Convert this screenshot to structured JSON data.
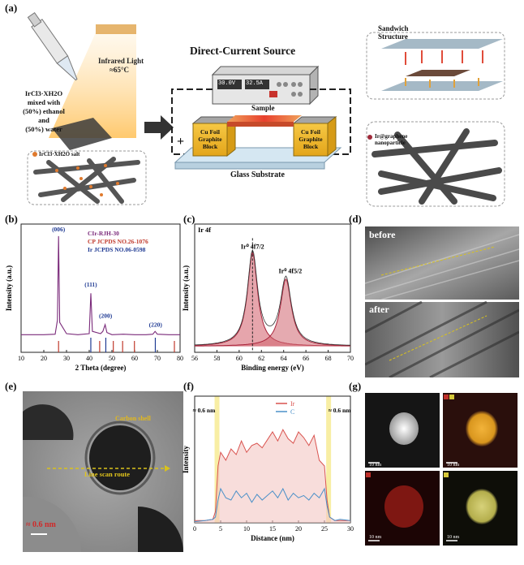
{
  "panel_labels": {
    "a": "(a)",
    "b": "(b)",
    "c": "(c)",
    "d": "(d)",
    "e": "(e)",
    "f": "(f)",
    "g": "(g)"
  },
  "panel_a": {
    "infrared_label": "Infrared Light",
    "infrared_temp": "≈65°C",
    "solution_text": [
      "IrCl3·XH2O",
      "mixed with",
      "(50%) ethanol",
      "and",
      "(50%) water"
    ],
    "salt_legend": "IrCl3·XH2O salt",
    "dc_source_title": "Direct-Current Source",
    "voltage_display": "30.0V",
    "current_display": "32.5A",
    "sample_label": "Sample",
    "block_label": [
      "Cu Foil",
      "Graphite",
      "Block"
    ],
    "plus_sign": "+",
    "substrate_label": "Glass Substrate",
    "sandwich_label": [
      "Sandwich",
      "Structure"
    ],
    "nanoparticle_legend": [
      "Ir@graphene",
      "nanoparticle"
    ]
  },
  "panel_b": {
    "legend": [
      {
        "text": "CIr-RJH-30",
        "color": "#7a2a7a"
      },
      {
        "text": "CP JCPDS NO.26-1076",
        "color": "#c0392b"
      },
      {
        "text": "Ir JCPDS NO.06-0598",
        "color": "#1f3a93"
      }
    ],
    "xlabel": "2 Theta (degree)",
    "ylabel": "Intensity (a.u.)",
    "peak_labels": [
      "(006)",
      "(111)",
      "(200)",
      "(220)"
    ]
  },
  "panel_c": {
    "title": "Ir 4f",
    "xlabel": "Binding energy (eV)",
    "ylabel": "Intensity (a.u.)",
    "peak1": "Ir⁰ 4f7/2",
    "peak2": "Ir⁰ 4f5/2"
  },
  "panel_d": {
    "before": "before",
    "after": "after"
  },
  "panel_e": {
    "shell_label": "Carbon shell",
    "route_label": "Line scan route",
    "spacing_label": "≈ 0.6 nm"
  },
  "panel_f": {
    "xlabel": "Distance (nm)",
    "ylabel": "Intensity",
    "legend": [
      {
        "text": "Ir",
        "color": "#d9534f"
      },
      {
        "text": "C",
        "color": "#4a90c8"
      }
    ],
    "left_annot": "≈ 0.6 nm",
    "right_annot": "≈ 0.6 nm"
  },
  "panel_g": {
    "scale_labels": [
      "10 nm",
      "10 nm",
      "10 nm",
      "10 nm"
    ]
  },
  "chart_data": [
    {
      "type": "line",
      "title": "",
      "xlabel": "2 Theta (degree)",
      "ylabel": "Intensity (a.u.)",
      "xlim": [
        10,
        80
      ],
      "xticks": [
        10,
        20,
        30,
        40,
        50,
        60,
        70,
        80
      ],
      "series": [
        {
          "name": "CIr-RJH-30",
          "x": [
            10,
            15,
            20,
            25,
            26,
            26.5,
            27,
            30,
            35,
            40,
            40.7,
            41.4,
            45,
            46,
            47,
            47.8,
            50,
            55,
            60,
            65,
            68,
            69,
            70,
            75,
            80
          ],
          "y": [
            0.07,
            0.07,
            0.07,
            0.075,
            0.2,
            0.95,
            0.18,
            0.08,
            0.07,
            0.08,
            0.44,
            0.1,
            0.08,
            0.1,
            0.16,
            0.09,
            0.07,
            0.075,
            0.07,
            0.07,
            0.075,
            0.1,
            0.075,
            0.07,
            0.07
          ]
        },
        {
          "name": "CP JCPDS NO.26-1076",
          "type": "stick",
          "x": [
            26.5,
            44.6,
            50.6,
            54.7,
            59.9,
            77.5
          ],
          "y": [
            0.05,
            0.03,
            0.02,
            0.03,
            0.015,
            0.02
          ]
        },
        {
          "name": "Ir JCPDS NO.06-0598",
          "type": "stick",
          "x": [
            40.7,
            47.3,
            69.1
          ],
          "y": [
            0.06,
            0.04,
            0.035
          ]
        }
      ]
    },
    {
      "type": "line",
      "title": "Ir 4f",
      "xlabel": "Binding energy (eV)",
      "ylabel": "Intensity (a.u.)",
      "xlim": [
        56,
        70
      ],
      "xticks": [
        56,
        58,
        60,
        62,
        64,
        66,
        68,
        70
      ],
      "series": [
        {
          "name": "Ir⁰ 4f7/2",
          "center": 61.2,
          "height": 0.78,
          "width": 0.55
        },
        {
          "name": "Ir⁰ 4f5/2",
          "center": 64.2,
          "height": 0.56,
          "width": 0.6
        }
      ],
      "baseline": 0.05,
      "dashed_x": 61.2
    },
    {
      "type": "line",
      "title": "",
      "xlabel": "Distance (nm)",
      "ylabel": "Intensity",
      "xlim": [
        0,
        30
      ],
      "xticks": [
        0,
        5,
        10,
        15,
        20,
        25,
        30
      ],
      "highlight_x": [
        4.3,
        25.8
      ],
      "series": [
        {
          "name": "Ir",
          "x": [
            0,
            2,
            3.5,
            4,
            4.5,
            5,
            6,
            7,
            8,
            9,
            10,
            11,
            12,
            13,
            14,
            15,
            16,
            17,
            18,
            19,
            20,
            21,
            22,
            23,
            24,
            25,
            25.5,
            26,
            27,
            28,
            30
          ],
          "y": [
            0.02,
            0.02,
            0.03,
            0.1,
            0.5,
            0.62,
            0.55,
            0.65,
            0.6,
            0.72,
            0.62,
            0.68,
            0.7,
            0.66,
            0.73,
            0.8,
            0.72,
            0.82,
            0.74,
            0.7,
            0.8,
            0.75,
            0.68,
            0.77,
            0.55,
            0.5,
            0.2,
            0.05,
            0.02,
            0.02,
            0.02
          ]
        },
        {
          "name": "C",
          "x": [
            0,
            2,
            3.5,
            4,
            4.5,
            5,
            6,
            7,
            8,
            9,
            10,
            11,
            12,
            13,
            14,
            15,
            16,
            17,
            18,
            19,
            20,
            21,
            22,
            23,
            24,
            25,
            25.5,
            26,
            27,
            28,
            30
          ],
          "y": [
            0.01,
            0.02,
            0.03,
            0.05,
            0.2,
            0.3,
            0.22,
            0.2,
            0.28,
            0.22,
            0.26,
            0.18,
            0.25,
            0.2,
            0.24,
            0.28,
            0.22,
            0.3,
            0.2,
            0.26,
            0.22,
            0.24,
            0.2,
            0.26,
            0.22,
            0.3,
            0.15,
            0.05,
            0.02,
            0.03,
            0.02
          ]
        }
      ]
    }
  ]
}
